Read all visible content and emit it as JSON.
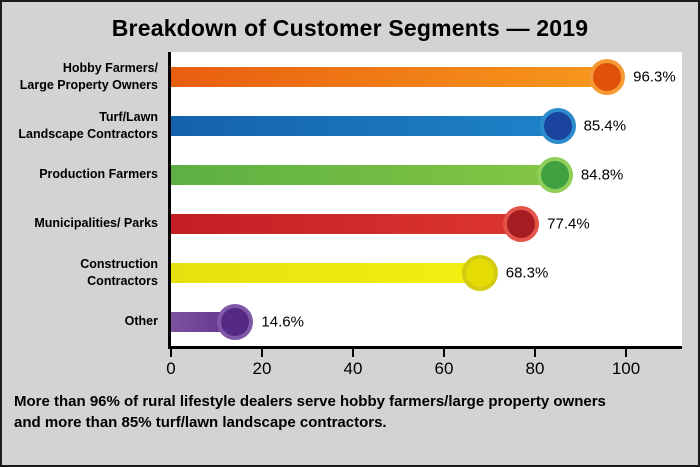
{
  "title": "Breakdown of Customer Segments — 2019",
  "caption": {
    "line1": "More than 96% of rural lifestyle dealers serve hobby farmers/large property owners",
    "line2": "and more than 85% turf/lawn landscape contractors."
  },
  "chart_data": {
    "type": "bar",
    "orientation": "horizontal",
    "title": "Breakdown of Customer Segments — 2019",
    "categories": [
      "Hobby Farmers/ Large Property Owners",
      "Turf/Lawn Landscape Contractors",
      "Production Farmers",
      "Municipalities/ Parks",
      "Construction Contractors",
      "Other"
    ],
    "category_lines": [
      [
        "Hobby Farmers/",
        "Large Property Owners"
      ],
      [
        "Turf/Lawn",
        "Landscape Contractors"
      ],
      [
        "Production Farmers"
      ],
      [
        "Municipalities/ Parks"
      ],
      [
        "Construction",
        "Contractors"
      ],
      [
        "Other"
      ]
    ],
    "values": [
      96.3,
      85.4,
      84.8,
      77.4,
      68.3,
      14.6
    ],
    "value_labels": [
      "96.3%",
      "85.4%",
      "84.8%",
      "77.4%",
      "68.3%",
      "14.6%"
    ],
    "colors": [
      {
        "bar_from": "#e85e0f",
        "bar_to": "#f8981d",
        "dot": "#e0510a",
        "ring": "#f79a36"
      },
      {
        "bar_from": "#1462ab",
        "bar_to": "#1e83c8",
        "dot": "#1a449d",
        "ring": "#2f8ccc"
      },
      {
        "bar_from": "#5cb043",
        "bar_to": "#84c643",
        "dot": "#41a040",
        "ring": "#8fcf5a"
      },
      {
        "bar_from": "#c41e25",
        "bar_to": "#dc3530",
        "dot": "#a51d22",
        "ring": "#e25348"
      },
      {
        "bar_from": "#e8e00e",
        "bar_to": "#f4ee12",
        "dot": "#e5dc05",
        "ring": "#d2cb10"
      },
      {
        "bar_from": "#7d529e",
        "bar_to": "#63338f",
        "dot": "#542a85",
        "ring": "#7f58a8"
      }
    ],
    "xlabel": "",
    "ylabel": "",
    "xlim": [
      0,
      100
    ],
    "x_ticks": [
      0,
      20,
      40,
      60,
      80,
      100
    ],
    "grid": false,
    "legend": false
  }
}
